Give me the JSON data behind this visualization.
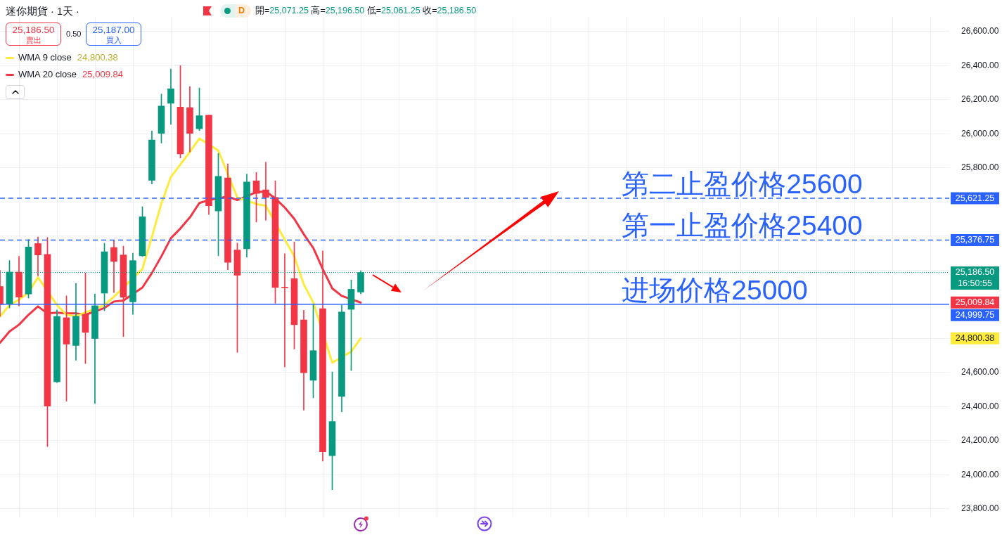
{
  "chart_data": {
    "type": "candlestick",
    "title": "迷你期貨 · 1天 ·",
    "categories": [
      null,
      null,
      null,
      null,
      null,
      null,
      null,
      null,
      null,
      null,
      null,
      null,
      null,
      null,
      null,
      null,
      null,
      null,
      null,
      null,
      null,
      null,
      null,
      null,
      null,
      null,
      null,
      null,
      null,
      null,
      null,
      null,
      null,
      null,
      null,
      null,
      null,
      null,
      null,
      null,
      null,
      null,
      null,
      null,
      null,
      null,
      null,
      null,
      null,
      null,
      null,
      null,
      null,
      null,
      null,
      null,
      null,
      null,
      null,
      null,
      null,
      null,
      null,
      null,
      null,
      null,
      null,
      null,
      null,
      null,
      null,
      null,
      null,
      null,
      null,
      null,
      null,
      null,
      null,
      null,
      null,
      null,
      null,
      null,
      null,
      null,
      null,
      null,
      null,
      null,
      null,
      null,
      null,
      null,
      null,
      null,
      null,
      null,
      null,
      null,
      null
    ],
    "ohlc": [
      [
        25104,
        25199,
        24929,
        24998
      ],
      [
        25003,
        25256,
        24978,
        25189
      ],
      [
        25189,
        25281,
        24990,
        25042
      ],
      [
        25060,
        25379,
        25036,
        25336
      ],
      [
        25356,
        25395,
        25166,
        25289
      ],
      [
        25292,
        25392,
        24165,
        24402
      ],
      [
        24545,
        24967,
        24540,
        24929
      ],
      [
        24921,
        25049,
        24431,
        24766
      ],
      [
        24758,
        25121,
        24671,
        24929
      ],
      [
        24941,
        25183,
        24652,
        24835
      ],
      [
        24799,
        25060,
        24418,
        24991
      ],
      [
        25065,
        25358,
        24962,
        25308
      ],
      [
        25333,
        25374,
        25068,
        25251
      ],
      [
        25289,
        25341,
        24810,
        25041
      ],
      [
        25014,
        25300,
        24941,
        25256
      ],
      [
        25284,
        25572,
        25280,
        25513
      ],
      [
        25727,
        26016,
        25706,
        25964
      ],
      [
        26003,
        26233,
        25946,
        26163
      ],
      [
        26179,
        26380,
        26055,
        26264
      ],
      [
        26157,
        26400,
        25858,
        25882
      ],
      [
        26153,
        26277,
        25893,
        26003
      ],
      [
        26029,
        26269,
        26019,
        26106
      ],
      [
        26109,
        26109,
        25526,
        25578
      ],
      [
        25547,
        25885,
        25284,
        25750
      ],
      [
        25741,
        25823,
        25202,
        25246
      ],
      [
        25318,
        25359,
        24717,
        25170
      ],
      [
        25325,
        25764,
        25276,
        25717
      ],
      [
        25724,
        25773,
        25482,
        25650
      ],
      [
        25671,
        25833,
        25493,
        25627
      ],
      [
        25627,
        25724,
        25006,
        25098
      ],
      [
        25100,
        25297,
        24632,
        25096
      ],
      [
        25150,
        25366,
        24737,
        24880
      ],
      [
        24908,
        24965,
        24379,
        24598
      ],
      [
        24554,
        24995,
        24451,
        24728
      ],
      [
        24974,
        25313,
        24080,
        24134
      ],
      [
        24112,
        24603,
        23911,
        24312
      ],
      [
        24459,
        24995,
        24369,
        24954
      ],
      [
        24970,
        25142,
        24611,
        25088
      ],
      [
        25071.25,
        25196.5,
        25061.25,
        25186.5
      ],
      null,
      null,
      null,
      null,
      null,
      null,
      null,
      null,
      null,
      null,
      null,
      null,
      null,
      null,
      null,
      null,
      null,
      null,
      null,
      null,
      null,
      null,
      null,
      null,
      null,
      null,
      null,
      null,
      null,
      null,
      null,
      null,
      null,
      null,
      null,
      null,
      null,
      null,
      null,
      null,
      null,
      null,
      null,
      null,
      null,
      null,
      null,
      null,
      null,
      null,
      null,
      null,
      null,
      null,
      null,
      null,
      null,
      null,
      null,
      null,
      null,
      null
    ],
    "colors": [
      "#f23645",
      "#089981",
      "#f23645",
      "#089981",
      "#f23645",
      "#f23645",
      "#089981",
      "#f23645",
      "#089981",
      "#f23645",
      "#089981",
      "#089981",
      "#f23645",
      "#f23645",
      "#089981",
      "#089981",
      "#089981",
      "#089981",
      "#089981",
      "#f23645",
      "#f23645",
      "#089981",
      "#f23645",
      "#089981",
      "#f23645",
      "#f23645",
      "#089981",
      "#f23645",
      "#f23645",
      "#f23645",
      "#f23645",
      "#f23645",
      "#f23645",
      "#089981",
      "#f23645",
      "#089981",
      "#089981",
      "#089981",
      "#089981",
      null,
      null,
      null,
      null,
      null,
      null,
      null,
      null,
      null,
      null,
      null,
      null,
      null,
      null,
      null,
      null,
      null,
      null,
      null,
      null,
      null,
      null,
      null,
      null,
      null,
      null,
      null,
      null,
      null,
      null,
      null,
      null,
      null,
      null,
      null,
      null,
      null,
      null,
      null,
      null,
      null,
      null,
      null,
      null,
      null,
      null,
      null,
      null,
      null,
      null,
      null,
      null,
      null,
      null,
      null,
      null,
      null,
      null,
      null,
      null,
      null,
      null
    ],
    "series": [
      {
        "name": "WMA 9 close",
        "type": "line",
        "color": "#ffeb3b",
        "values": [
          24929,
          24995,
          25027,
          25068,
          25158,
          null,
          24995,
          24938,
          24929,
          null,
          null,
          24995,
          25044,
          null,
          null,
          25207,
          25395,
          25591,
          25746,
          25820,
          25893,
          25972,
          null,
          25902,
          25763,
          25627,
          null,
          25588,
          25578,
          null,
          25379,
          25281,
          25117,
          25011,
          null,
          24657,
          null,
          24722,
          24800.38,
          null,
          null,
          null,
          null,
          null,
          null,
          null,
          null,
          null,
          null,
          null,
          null,
          null,
          null,
          null,
          null,
          null,
          null,
          null,
          null,
          null,
          null,
          null,
          null,
          null,
          null,
          null,
          null,
          null,
          null,
          null,
          null,
          null,
          null,
          null,
          null,
          null,
          null,
          null,
          null,
          null,
          null,
          null,
          null,
          null,
          null,
          null,
          null,
          null,
          null,
          null,
          null,
          null,
          null,
          null,
          null,
          null,
          null,
          null,
          null,
          null,
          null
        ]
      },
      {
        "name": "WMA 20 close",
        "type": "line",
        "color": "#f23645",
        "values": [
          24774,
          24840,
          24880,
          24938,
          24987,
          24946,
          24951,
          24946,
          24946,
          24938,
          null,
          24978,
          25016,
          25022,
          null,
          25098,
          25183,
          25281,
          25387,
          25444,
          25509,
          25594,
          25611,
          null,
          25632,
          25611,
          null,
          25657,
          25662,
          25621,
          25567,
          25501,
          25411,
          25330,
          25207,
          25093,
          25049,
          null,
          25009.84,
          null,
          null,
          null,
          null,
          null,
          null,
          null,
          null,
          null,
          null,
          null,
          null,
          null,
          null,
          null,
          null,
          null,
          null,
          null,
          null,
          null,
          null,
          null,
          null,
          null,
          null,
          null,
          null,
          null,
          null,
          null,
          null,
          null,
          null,
          null,
          null,
          null,
          null,
          null,
          null,
          null,
          null,
          null,
          null,
          null,
          null,
          null,
          null,
          null,
          null,
          null,
          null,
          null,
          null,
          null,
          null,
          null,
          null,
          null,
          null,
          null,
          null
        ]
      }
    ],
    "ylim": [
      23746,
      26685
    ],
    "yticks": [
      {
        "value": 23800,
        "label": "23,800.00"
      },
      {
        "value": 24000,
        "label": "24,000.00"
      },
      {
        "value": 24200,
        "label": "24,200.00"
      },
      {
        "value": 24400,
        "label": "24,400.00"
      },
      {
        "value": 24600,
        "label": "24,600.00"
      },
      {
        "value": 24800,
        "label": null
      },
      {
        "value": 25000,
        "label": null
      },
      {
        "value": 25200,
        "label": null
      },
      {
        "value": 25400,
        "label": null
      },
      {
        "value": 25600,
        "label": null
      },
      {
        "value": 25800,
        "label": "25,800.00"
      },
      {
        "value": 26000,
        "label": "26,000.00"
      },
      {
        "value": 26200,
        "label": "26,200.00"
      },
      {
        "value": 26400,
        "label": "26,400.00"
      },
      {
        "value": 26600,
        "label": "26,600.00"
      }
    ],
    "tick_labels": "y",
    "grid": true,
    "legend": "top left",
    "ref_lines": [
      {
        "axis": "y",
        "value": 25621.25,
        "label": "第二止盈价格25600",
        "color": "#2962ff",
        "line_style": "dashed"
      },
      {
        "axis": "y",
        "value": 25376.75,
        "label": "第一止盈价格25400",
        "color": "#2962ff",
        "line_style": "dashed"
      },
      {
        "axis": "y",
        "value": 24999.75,
        "label": "进场价格25000",
        "color": "#2962ff",
        "line_style": "solid"
      },
      {
        "axis": "y",
        "value": 25186.5,
        "color": "#089981",
        "line_style": "dotted"
      }
    ],
    "annotations": [
      "開=25,071.25 高=25,196.50 低=25,061.25 收=25,186.50",
      "D",
      "25,186.50",
      "賣出",
      "0.50",
      "25,187.00",
      "買入",
      "24,800.38",
      "25,009.84",
      "25,621.25",
      "25,376.75",
      "25,186.50",
      "16:50:55",
      "25,009.84",
      "24,999.75",
      "24,800.38"
    ]
  }
}
